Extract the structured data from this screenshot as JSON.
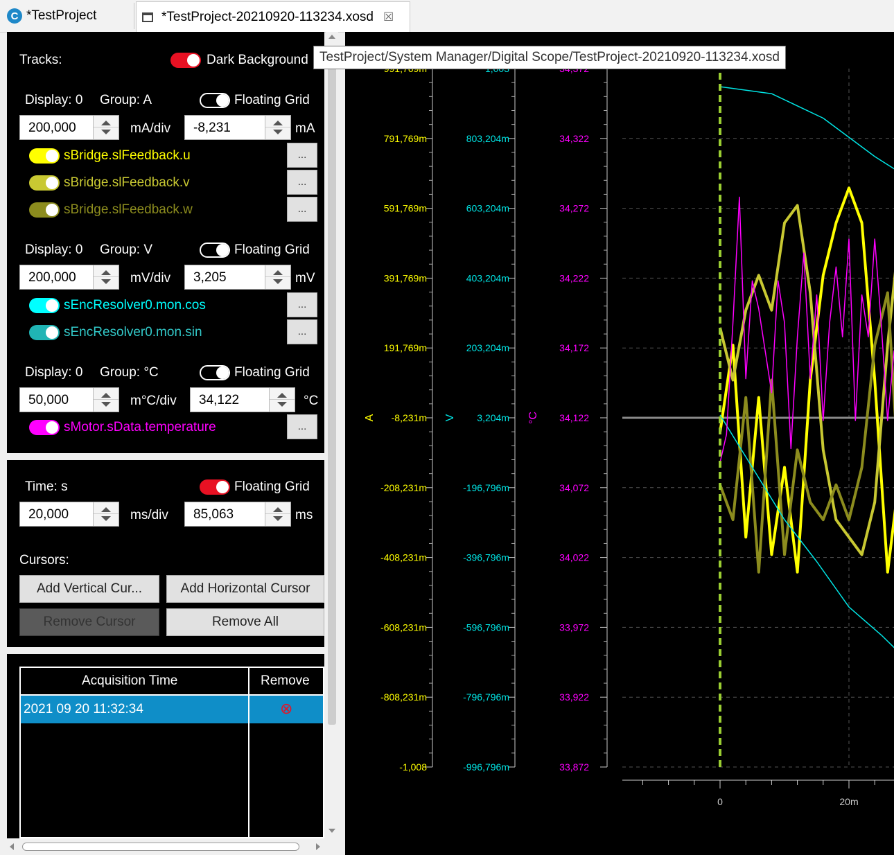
{
  "tabs": [
    {
      "label": "*TestProject"
    },
    {
      "label": "*TestProject-20210920-113234.xosd",
      "close": "☒"
    }
  ],
  "tooltip": "TestProject/System Manager/Digital Scope/TestProject-20210920-113234.xosd",
  "tracks": {
    "label": "Tracks:",
    "dark_background_label": "Dark Background",
    "dark_background_on": true
  },
  "groups": [
    {
      "display_label": "Display: 0",
      "group_label": "Group: A",
      "floating_grid_label": "Floating Grid",
      "floating_grid_on": false,
      "scale_value": "200,000",
      "scale_unit": "mA/div",
      "offset_value": "-8,231",
      "offset_unit": "mA",
      "channels": [
        {
          "name": "sBridge.slFeedback.u",
          "color": "#ffff00"
        },
        {
          "name": "sBridge.slFeedback.v",
          "color": "#c8c832"
        },
        {
          "name": "sBridge.slFeedback.w",
          "color": "#8c8c1e"
        }
      ]
    },
    {
      "display_label": "Display: 0",
      "group_label": "Group: V",
      "floating_grid_label": "Floating Grid",
      "floating_grid_on": false,
      "scale_value": "200,000",
      "scale_unit": "mV/div",
      "offset_value": "3,205",
      "offset_unit": "mV",
      "channels": [
        {
          "name": "sEncResolver0.mon.cos",
          "color": "#00ffff"
        },
        {
          "name": "sEncResolver0.mon.sin",
          "color": "#32c8c8"
        }
      ]
    },
    {
      "display_label": "Display: 0",
      "group_label": "Group: °C",
      "floating_grid_label": "Floating Grid",
      "floating_grid_on": false,
      "scale_value": "50,000",
      "scale_unit": "m°C/div",
      "offset_value": "34,122",
      "offset_unit": "°C",
      "channels": [
        {
          "name": "sMotor.sData.temperature",
          "color": "#ff00ff"
        }
      ]
    }
  ],
  "time": {
    "label": "Time: s",
    "floating_grid_label": "Floating Grid",
    "floating_grid_on": true,
    "scale_value": "20,000",
    "scale_unit": "ms/div",
    "offset_value": "85,063",
    "offset_unit": "ms"
  },
  "cursors": {
    "label": "Cursors:",
    "add_vertical": "Add Vertical Cur...",
    "add_horizontal": "Add Horizontal Cursor",
    "remove_cursor": "Remove Cursor",
    "remove_all": "Remove All"
  },
  "acquisitions": {
    "headers": [
      "Acquisition Time",
      "Remove"
    ],
    "rows": [
      {
        "time": "2021 09 20 11:32:34",
        "remove_icon": "⊗"
      }
    ]
  },
  "dots_label": "...",
  "colors": {
    "toggle_on": "#e81123",
    "toggle_off": "#1e7a1e",
    "selection": "#0078d7",
    "ch_a": "#ffff00",
    "ch_v": "#00e5e5",
    "ch_c": "#ff00ff",
    "cursor": "#9acd32"
  },
  "chart_data": {
    "type": "line",
    "axes": [
      {
        "unit": "A",
        "color": "#ffff00",
        "ticks": [
          "991,769m",
          "791,769m",
          "591,769m",
          "391,769m",
          "191,769m",
          "-8,231m",
          "-208,231m",
          "-408,231m",
          "-608,231m",
          "-808,231m",
          "-1,008"
        ]
      },
      {
        "unit": "V",
        "color": "#00e5e5",
        "ticks": [
          "1,003",
          "803,204m",
          "603,204m",
          "403,204m",
          "203,204m",
          "3,204m",
          "-196,796m",
          "-396,796m",
          "-596,796m",
          "-796,796m",
          "-996,796m"
        ]
      },
      {
        "unit": "°C",
        "color": "#ff00ff",
        "ticks": [
          "34,372",
          "34,322",
          "34,272",
          "34,222",
          "34,172",
          "34,122",
          "34,072",
          "34,022",
          "33,972",
          "33,922",
          "33,872"
        ]
      }
    ],
    "x_ticks": [
      "0",
      "20m"
    ],
    "grid": true,
    "series": [
      {
        "name": "sBridge.slFeedback.u",
        "color": "#ffff00",
        "points": [
          [
            0,
            -0.05
          ],
          [
            0.002,
            0.2
          ],
          [
            0.004,
            -0.35
          ],
          [
            0.006,
            0.05
          ],
          [
            0.008,
            -0.4
          ],
          [
            0.01,
            -0.15
          ],
          [
            0.012,
            -0.45
          ],
          [
            0.014,
            0.1
          ],
          [
            0.016,
            0.4
          ],
          [
            0.018,
            0.55
          ],
          [
            0.02,
            0.65
          ],
          [
            0.022,
            0.55
          ],
          [
            0.024,
            0.1
          ],
          [
            0.026,
            -0.45
          ],
          [
            0.028,
            -0.15
          ],
          [
            0.03,
            0.55
          ]
        ]
      },
      {
        "name": "sBridge.slFeedback.v",
        "color": "#c8c832",
        "points": [
          [
            0,
            0.25
          ],
          [
            0.002,
            0.1
          ],
          [
            0.004,
            0.3
          ],
          [
            0.006,
            0.4
          ],
          [
            0.008,
            0.3
          ],
          [
            0.01,
            0.55
          ],
          [
            0.012,
            0.6
          ],
          [
            0.014,
            0.35
          ],
          [
            0.016,
            -0.1
          ],
          [
            0.018,
            -0.3
          ],
          [
            0.02,
            -0.35
          ],
          [
            0.022,
            -0.4
          ],
          [
            0.024,
            -0.25
          ],
          [
            0.026,
            0.2
          ],
          [
            0.028,
            0.55
          ],
          [
            0.03,
            0.45
          ]
        ]
      },
      {
        "name": "sBridge.slFeedback.w",
        "color": "#8c8c1e",
        "points": [
          [
            0,
            -0.2
          ],
          [
            0.002,
            -0.3
          ],
          [
            0.004,
            0.05
          ],
          [
            0.006,
            -0.45
          ],
          [
            0.008,
            0.1
          ],
          [
            0.01,
            -0.4
          ],
          [
            0.012,
            -0.1
          ],
          [
            0.014,
            -0.25
          ],
          [
            0.016,
            -0.3
          ],
          [
            0.018,
            -0.2
          ],
          [
            0.02,
            -0.3
          ],
          [
            0.022,
            -0.15
          ],
          [
            0.024,
            0.2
          ],
          [
            0.026,
            0.35
          ],
          [
            0.028,
            -0.25
          ],
          [
            0.03,
            -0.2
          ]
        ]
      },
      {
        "name": "sEncResolver0.mon.cos",
        "color": "#00e5e5",
        "points": [
          [
            0,
            0.94
          ],
          [
            0.008,
            0.92
          ],
          [
            0.016,
            0.85
          ],
          [
            0.024,
            0.74
          ],
          [
            0.03,
            0.67
          ]
        ]
      },
      {
        "name": "sEncResolver0.mon.sin",
        "color": "#00e5e5",
        "points": [
          [
            0,
            0.0
          ],
          [
            0.005,
            -0.15
          ],
          [
            0.01,
            -0.3
          ],
          [
            0.015,
            -0.42
          ],
          [
            0.02,
            -0.55
          ],
          [
            0.025,
            -0.63
          ],
          [
            0.03,
            -0.72
          ]
        ]
      },
      {
        "name": "sMotor.sData.temperature",
        "color": "#ff00ff",
        "points": [
          [
            0,
            34.09
          ],
          [
            0.001,
            34.11
          ],
          [
            0.002,
            34.19
          ],
          [
            0.003,
            34.28
          ],
          [
            0.004,
            34.15
          ],
          [
            0.005,
            34.22
          ],
          [
            0.006,
            34.2
          ],
          [
            0.007,
            34.17
          ],
          [
            0.008,
            34.14
          ],
          [
            0.009,
            34.22
          ],
          [
            0.01,
            34.19
          ],
          [
            0.011,
            34.1
          ],
          [
            0.012,
            34.18
          ],
          [
            0.013,
            34.24
          ],
          [
            0.014,
            34.15
          ],
          [
            0.015,
            34.21
          ],
          [
            0.016,
            34.12
          ],
          [
            0.017,
            34.19
          ],
          [
            0.018,
            34.23
          ],
          [
            0.019,
            34.18
          ],
          [
            0.02,
            34.25
          ],
          [
            0.021,
            34.12
          ],
          [
            0.022,
            34.21
          ],
          [
            0.023,
            34.18
          ],
          [
            0.024,
            34.25
          ],
          [
            0.025,
            34.19
          ],
          [
            0.026,
            34.12
          ],
          [
            0.027,
            34.17
          ],
          [
            0.028,
            34.16
          ],
          [
            0.029,
            34.14
          ],
          [
            0.03,
            34.16
          ]
        ]
      }
    ]
  }
}
